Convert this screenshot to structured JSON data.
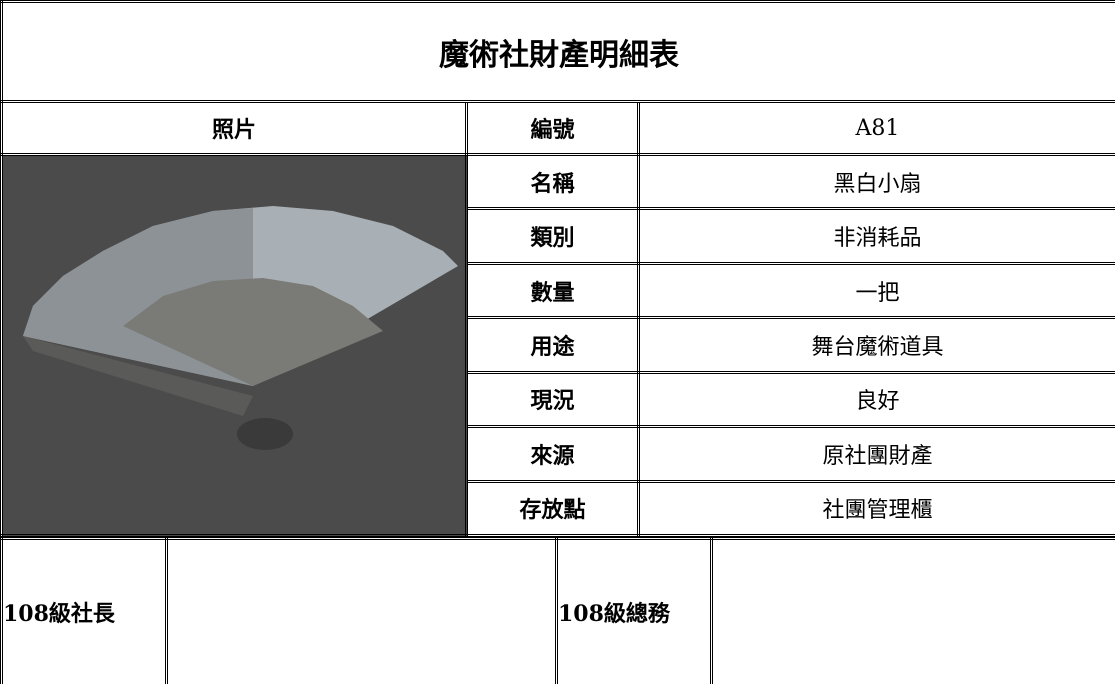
{
  "header": {
    "title": "魔術社財產明細表"
  },
  "table": {
    "photo_label": "照片",
    "rows": [
      [
        "編號",
        "A81"
      ],
      [
        "名稱",
        "黑白小扇"
      ],
      [
        "類別",
        "非消耗品"
      ],
      [
        "數量",
        "一把"
      ],
      [
        "用途",
        "舞台魔術道具"
      ],
      [
        "現況",
        "良好"
      ],
      [
        "來源",
        "原社團財產"
      ],
      [
        "存放點",
        "社團管理櫃"
      ]
    ]
  },
  "signatures": [
    "108級社長",
    "108級總務"
  ]
}
